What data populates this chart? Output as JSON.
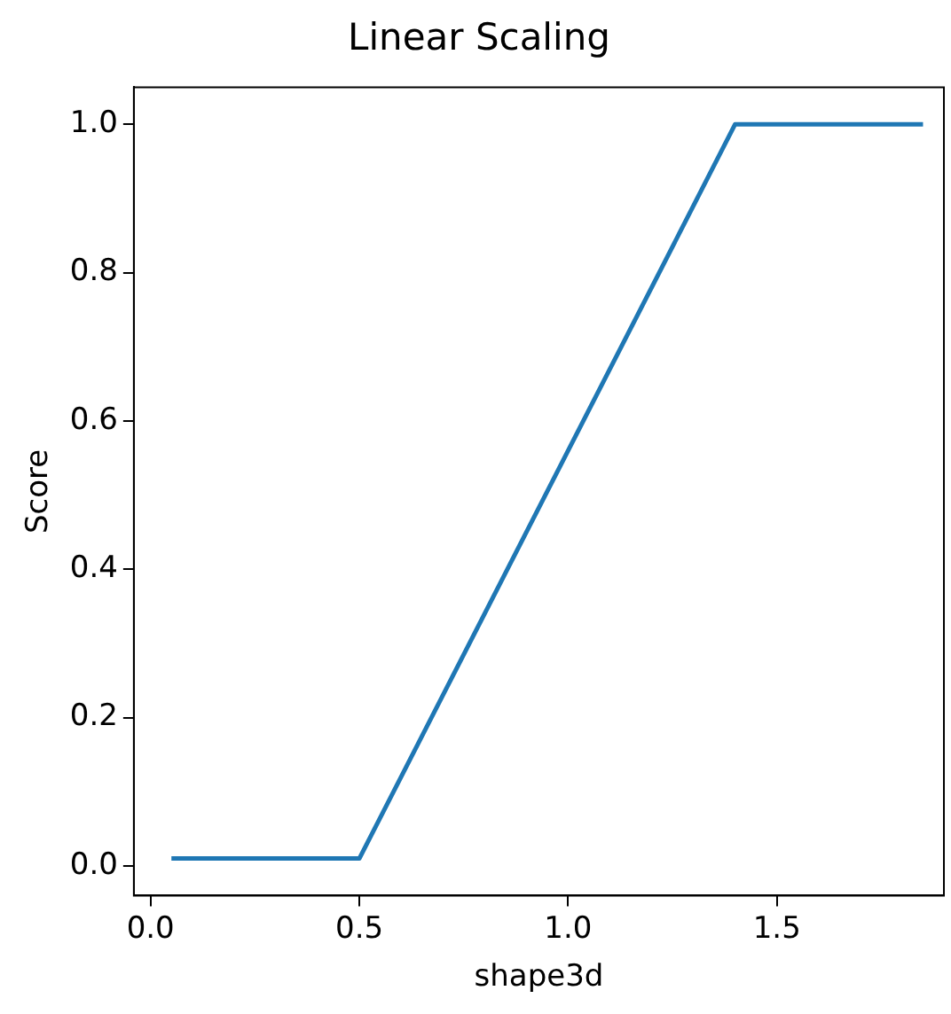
{
  "chart_data": {
    "type": "line",
    "title": "Linear Scaling",
    "xlabel": "shape3d",
    "ylabel": "Score",
    "x": [
      0.05,
      0.5,
      1.4,
      1.85
    ],
    "series": [
      {
        "color": "#1f77b4",
        "values": [
          0.01,
          0.01,
          1.0,
          1.0
        ]
      }
    ],
    "xlim": [
      -0.04,
      1.9
    ],
    "xticks": [
      {
        "value": 0,
        "label": "0.0"
      },
      {
        "value": 0.5,
        "label": "0.5"
      },
      {
        "value": 1,
        "label": "1.0"
      },
      {
        "value": 1.5,
        "label": "1.5"
      }
    ],
    "ylim": [
      -0.04,
      1.05
    ],
    "yticks": [
      {
        "value": 0,
        "label": "0.0"
      },
      {
        "value": 0.2,
        "label": "0.2"
      },
      {
        "value": 0.4,
        "label": "0.4"
      },
      {
        "value": 0.6,
        "label": "0.6"
      },
      {
        "value": 0.8,
        "label": "0.8"
      },
      {
        "value": 1,
        "label": "1.0"
      }
    ],
    "grid": false,
    "legend": false,
    "marker": "none",
    "line_style": "solid"
  }
}
